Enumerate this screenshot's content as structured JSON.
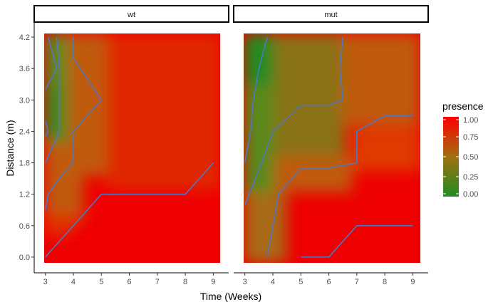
{
  "chart_data": {
    "type": "heatmap",
    "xlabel": "Time (Weeks)",
    "ylabel": "Distance (m)",
    "x_ticks": [
      3,
      4,
      5,
      6,
      7,
      8,
      9
    ],
    "y_ticks": [
      0.0,
      0.6,
      1.2,
      1.8,
      2.4,
      3.0,
      3.6,
      4.2
    ],
    "y_tick_labels": [
      "0.0",
      "0.6",
      "1.2",
      "1.8",
      "2.4",
      "3.0",
      "3.6",
      "4.2"
    ],
    "xlim": [
      2.6,
      9.55
    ],
    "ylim": [
      -0.3,
      4.5
    ],
    "legend": {
      "title": "presence",
      "ticks": [
        0.0,
        0.25,
        0.5,
        0.75,
        1.0
      ],
      "tick_labels": [
        "0.00",
        "0.25",
        "0.50",
        "0.75",
        "1.00"
      ],
      "low_color": "#228b22",
      "high_color": "#ff0000",
      "placement": "right"
    },
    "contour_color": "#4f76c4",
    "panels": [
      {
        "label": "wt",
        "contours": [
          [
            [
              3.0,
              0.0
            ],
            [
              3.5,
              0.3
            ],
            [
              4.0,
              0.6
            ],
            [
              5.0,
              1.2
            ],
            [
              8.0,
              1.2
            ],
            [
              9.0,
              1.8
            ]
          ],
          [
            [
              3.0,
              0.9
            ],
            [
              3.1,
              1.2
            ],
            [
              3.5,
              1.5
            ],
            [
              4.0,
              1.8
            ],
            [
              4.0,
              2.4
            ],
            [
              4.5,
              2.7
            ],
            [
              5.0,
              3.0
            ],
            [
              4.5,
              3.4
            ],
            [
              4.0,
              3.8
            ],
            [
              4.0,
              4.2
            ]
          ],
          [
            [
              3.0,
              1.8
            ],
            [
              3.5,
              2.4
            ],
            [
              3.5,
              3.6
            ],
            [
              3.4,
              4.2
            ]
          ],
          [
            [
              3.0,
              2.6
            ],
            [
              3.1,
              2.4
            ],
            [
              3.0,
              2.3
            ]
          ],
          [
            [
              3.0,
              3.2
            ],
            [
              3.4,
              3.6
            ],
            [
              3.1,
              4.2
            ]
          ]
        ]
      },
      {
        "label": "mut",
        "contours": [
          [
            [
              5.0,
              0.0
            ],
            [
              6.0,
              0.0
            ],
            [
              7.0,
              0.6
            ],
            [
              9.0,
              0.6
            ]
          ],
          [
            [
              3.8,
              0.0
            ],
            [
              4.2,
              1.2
            ],
            [
              5.0,
              1.7
            ],
            [
              6.0,
              1.7
            ],
            [
              7.0,
              1.8
            ],
            [
              7.0,
              2.4
            ],
            [
              8.0,
              2.7
            ],
            [
              9.0,
              2.7
            ]
          ],
          [
            [
              3.0,
              1.0
            ],
            [
              3.6,
              1.8
            ],
            [
              4.0,
              2.4
            ],
            [
              5.0,
              2.9
            ],
            [
              6.0,
              2.9
            ],
            [
              6.5,
              3.0
            ],
            [
              6.4,
              3.6
            ],
            [
              6.5,
              4.2
            ]
          ],
          [
            [
              3.0,
              1.8
            ],
            [
              3.2,
              2.4
            ],
            [
              3.3,
              3.0
            ],
            [
              3.5,
              3.6
            ],
            [
              3.8,
              4.2
            ]
          ]
        ]
      }
    ]
  }
}
